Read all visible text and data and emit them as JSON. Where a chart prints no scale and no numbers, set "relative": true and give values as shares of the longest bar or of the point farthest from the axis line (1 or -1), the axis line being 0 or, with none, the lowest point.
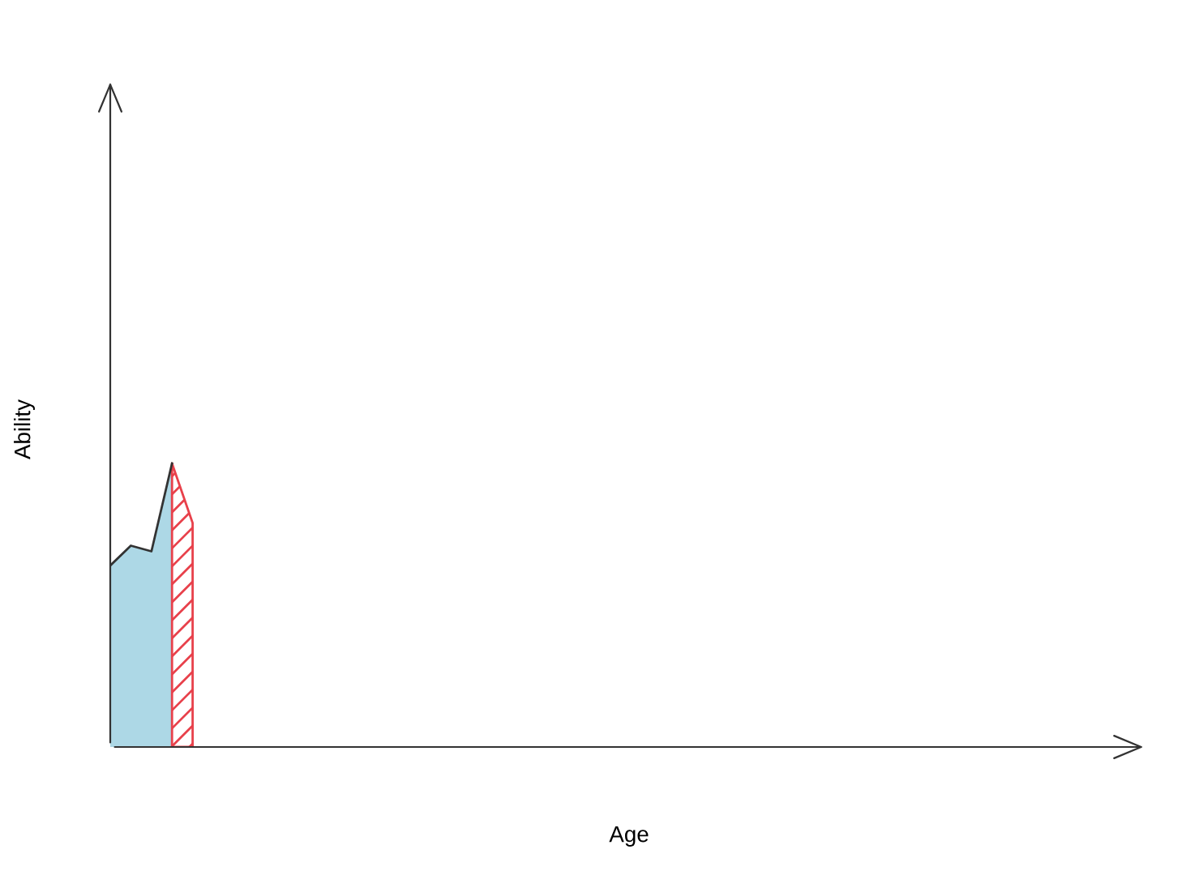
{
  "chart_data": {
    "type": "area",
    "relative": true,
    "xlabel": "Age",
    "ylabel": "Ability",
    "categories": [
      null,
      null,
      null,
      null,
      null,
      null,
      null,
      null,
      null,
      null,
      null,
      null,
      null,
      null,
      null,
      null,
      null,
      null,
      null,
      null,
      null,
      null,
      null,
      null,
      null,
      null,
      null,
      null,
      null,
      null,
      null,
      null,
      null,
      null,
      null,
      null,
      null,
      null,
      null,
      null,
      null,
      null,
      null,
      null,
      null,
      null,
      null,
      null,
      null,
      null,
      null
    ],
    "series": [
      {
        "color": "#add8e6",
        "values": [
          0.64,
          0.71,
          0.69,
          1.0,
          null,
          null,
          null,
          null,
          null,
          null,
          null,
          null,
          null,
          null,
          null,
          null,
          null,
          null,
          null,
          null,
          null,
          null,
          null,
          null,
          null,
          null,
          null,
          null,
          null,
          null,
          null,
          null,
          null,
          null,
          null,
          null,
          null,
          null,
          null,
          null,
          null,
          null,
          null,
          null,
          null,
          null,
          null,
          null,
          null,
          null,
          null
        ]
      },
      {
        "color": "#e8414b",
        "values": [
          null,
          null,
          null,
          1.0,
          0.79,
          null,
          null,
          null,
          null,
          null,
          null,
          null,
          null,
          null,
          null,
          null,
          null,
          null,
          null,
          null,
          null,
          null,
          null,
          null,
          null,
          null,
          null,
          null,
          null,
          null,
          null,
          null,
          null,
          null,
          null,
          null,
          null,
          null,
          null,
          null,
          null,
          null,
          null,
          null,
          null,
          null,
          null,
          null,
          null,
          null,
          null
        ]
      }
    ]
  }
}
